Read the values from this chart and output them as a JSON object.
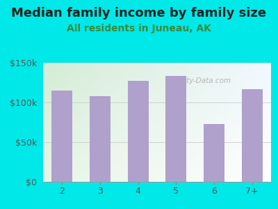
{
  "title": "Median family income by family size",
  "subtitle": "All residents in Juneau, AK",
  "categories": [
    "2",
    "3",
    "4",
    "5",
    "6",
    "7+"
  ],
  "values": [
    115000,
    108000,
    127000,
    133000,
    73000,
    117000
  ],
  "bar_color": "#b0a0cc",
  "background_outer": "#00e8e8",
  "background_inner_left": "#d4ecd4",
  "background_inner_right": "#f0f8ff",
  "title_color": "#222222",
  "subtitle_color": "#3a8a3a",
  "tick_color": "#555555",
  "ytick_color": "#555555",
  "ylim": [
    0,
    150000
  ],
  "yticks": [
    0,
    50000,
    100000,
    150000
  ],
  "ytick_labels": [
    "$0",
    "$50k",
    "$100k",
    "$150k"
  ],
  "title_fontsize": 13,
  "subtitle_fontsize": 10,
  "watermark": "City-Data.com",
  "watermark_color": "#aaaaaa"
}
